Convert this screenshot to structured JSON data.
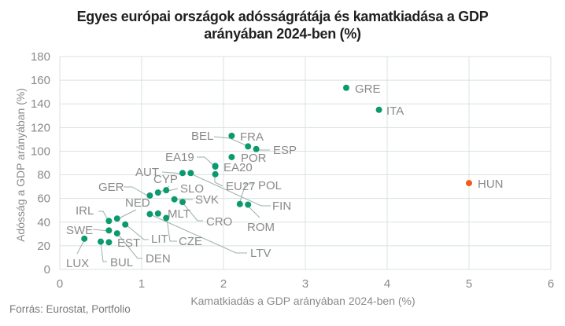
{
  "chart_data": {
    "type": "scatter",
    "title": "Egyes európai országok adósságrátája és kamatkiadása a GDP arányában 2024-ben (%)",
    "title_lines": [
      "Egyes európai országok adósságrátája és kamatkiadása a GDP",
      "arányában 2024-ben (%)"
    ],
    "xlabel": "Kamatkiadás a GDP arányában 2024-ben (%)",
    "ylabel": "Adósság a GDP arányában (%)",
    "xlim": [
      0,
      6
    ],
    "ylim": [
      0,
      180
    ],
    "xticks": [
      "0",
      "1",
      "2",
      "3",
      "4",
      "5",
      "6"
    ],
    "yticks": [
      "0",
      "20",
      "40",
      "60",
      "80",
      "100",
      "120",
      "140",
      "160",
      "180"
    ],
    "grid": true,
    "colors": {
      "default": "#0a9a6e",
      "highlight": "#f05a1a"
    },
    "points": [
      {
        "label": "GRE",
        "x": 3.5,
        "y": 153.6
      },
      {
        "label": "ITA",
        "x": 3.9,
        "y": 135.0
      },
      {
        "label": "FRA",
        "x": 2.1,
        "y": 113.0
      },
      {
        "label": "BEL",
        "x": 2.3,
        "y": 104.0
      },
      {
        "label": "ESP",
        "x": 2.4,
        "y": 101.8
      },
      {
        "label": "POR",
        "x": 2.1,
        "y": 95.0
      },
      {
        "label": "EA19",
        "x": 1.9,
        "y": 87.5
      },
      {
        "label": "EA20",
        "x": 1.9,
        "y": 87.0
      },
      {
        "label": "EU27",
        "x": 1.9,
        "y": 80.5
      },
      {
        "label": "AUT",
        "x": 1.5,
        "y": 81.5
      },
      {
        "label": "FIN",
        "x": 1.6,
        "y": 81.5
      },
      {
        "label": "HUN",
        "x": 5.0,
        "y": 73.0,
        "highlight": true
      },
      {
        "label": "GER",
        "x": 1.1,
        "y": 62.5
      },
      {
        "label": "CYP",
        "x": 1.2,
        "y": 65.0
      },
      {
        "label": "SLO",
        "x": 1.3,
        "y": 67.0
      },
      {
        "label": "SVK",
        "x": 1.4,
        "y": 59.3
      },
      {
        "label": "CRO",
        "x": 1.5,
        "y": 57.0
      },
      {
        "label": "POL",
        "x": 2.2,
        "y": 55.3
      },
      {
        "label": "ROM",
        "x": 2.3,
        "y": 54.8
      },
      {
        "label": "NED",
        "x": 0.7,
        "y": 43.0
      },
      {
        "label": "LTV",
        "x": 1.1,
        "y": 46.8
      },
      {
        "label": "MLT",
        "x": 1.2,
        "y": 47.3
      },
      {
        "label": "CZE",
        "x": 1.3,
        "y": 43.5
      },
      {
        "label": "IRL",
        "x": 0.6,
        "y": 41.0
      },
      {
        "label": "LIT",
        "x": 0.8,
        "y": 38.0
      },
      {
        "label": "SWE",
        "x": 0.6,
        "y": 33.0
      },
      {
        "label": "EST",
        "x": 0.7,
        "y": 30.5
      },
      {
        "label": "LUX",
        "x": 0.3,
        "y": 26.0
      },
      {
        "label": "BUL",
        "x": 0.5,
        "y": 23.5
      },
      {
        "label": "DEN",
        "x": 0.6,
        "y": 23.0
      }
    ]
  },
  "source": "Forrás: Eurostat, Portfolio"
}
